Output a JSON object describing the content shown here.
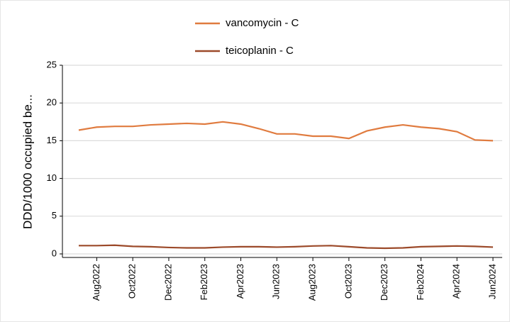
{
  "chart_data": {
    "type": "line",
    "y_label": "DDD/1000  occupied be...",
    "categories": [
      null,
      "Aug2022",
      null,
      "Oct2022",
      null,
      "Dec2022",
      null,
      "Feb2023",
      null,
      "Apr2023",
      null,
      "Jun2023",
      null,
      "Aug2023",
      null,
      "Oct2023",
      null,
      "Dec2023",
      null,
      "Feb2024",
      null,
      "Apr2024",
      null,
      "Jun2024"
    ],
    "series": [
      {
        "name": "vancomycin - C",
        "color": "#e07b3f",
        "values": [
          16.4,
          16.8,
          16.9,
          16.9,
          17.1,
          17.2,
          17.3,
          17.2,
          17.5,
          17.2,
          16.6,
          15.9,
          15.9,
          15.6,
          15.6,
          15.3,
          16.3,
          16.8,
          17.1,
          16.8,
          16.6,
          16.2,
          15.1,
          15.0
        ]
      },
      {
        "name": "teicoplanin - C",
        "color": "#9c4a2a",
        "values": [
          1.1,
          1.1,
          1.15,
          1.0,
          0.95,
          0.85,
          0.8,
          0.8,
          0.9,
          0.95,
          0.95,
          0.9,
          0.95,
          1.05,
          1.1,
          0.95,
          0.8,
          0.75,
          0.8,
          0.95,
          1.0,
          1.05,
          1.0,
          0.9
        ]
      }
    ],
    "ylim": [
      0,
      25
    ],
    "yticks": [
      0,
      5,
      10,
      15,
      20,
      25
    ],
    "grid": true
  }
}
